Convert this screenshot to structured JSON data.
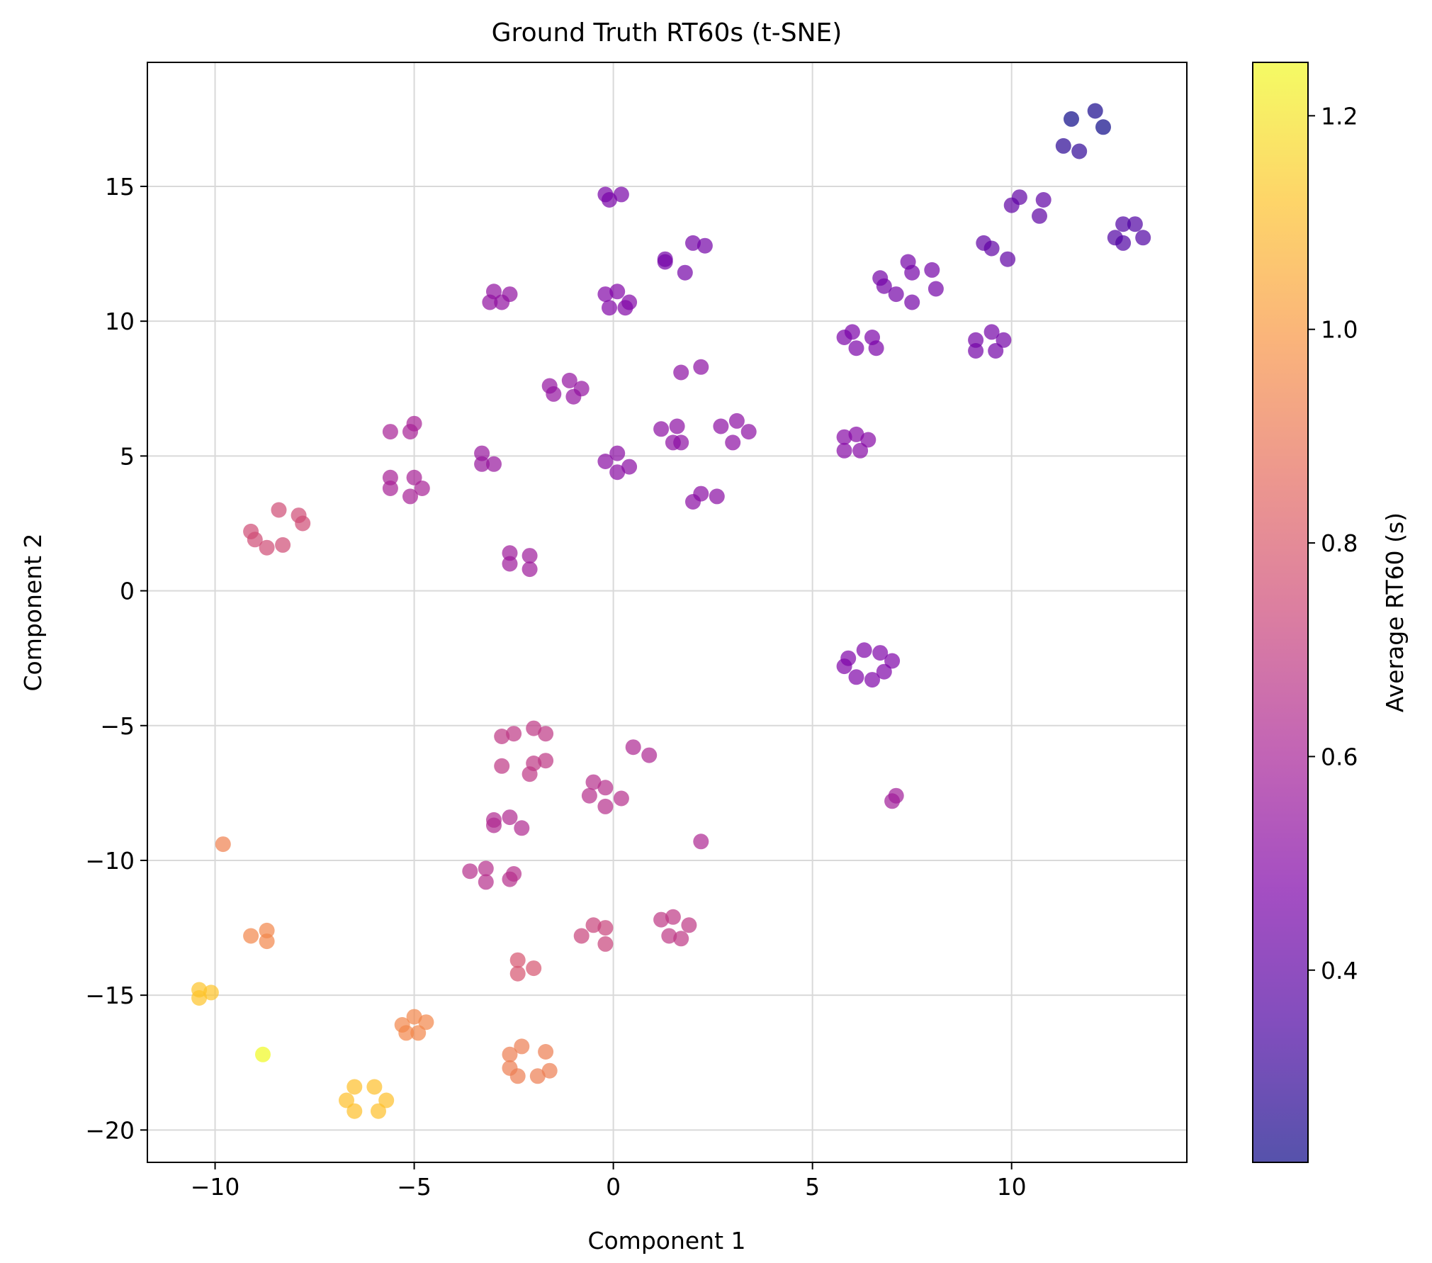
{
  "chart_data": {
    "type": "scatter",
    "title": "Ground Truth RT60s (t-SNE)",
    "xlabel": "Component 1",
    "ylabel": "Component 2",
    "xlim": [
      -11.7,
      14.4
    ],
    "ylim": [
      -21.2,
      19.6
    ],
    "xticks": [
      -10,
      -5,
      0,
      5,
      10
    ],
    "yticks": [
      -20,
      -15,
      -10,
      -5,
      0,
      5,
      10,
      15
    ],
    "grid": true,
    "colormap": "plasma",
    "colorbar": {
      "label": "Average RT60 (s)",
      "range": [
        0.22,
        1.25
      ],
      "ticks": [
        0.4,
        0.6,
        0.8,
        1.0,
        1.2
      ]
    },
    "points": [
      {
        "x": 11.5,
        "y": 17.5,
        "c": 0.22
      },
      {
        "x": 12.1,
        "y": 17.8,
        "c": 0.24
      },
      {
        "x": 12.3,
        "y": 17.2,
        "c": 0.22
      },
      {
        "x": 11.3,
        "y": 16.5,
        "c": 0.28
      },
      {
        "x": 11.7,
        "y": 16.3,
        "c": 0.29
      },
      {
        "x": 10.0,
        "y": 14.3,
        "c": 0.4
      },
      {
        "x": 10.2,
        "y": 14.6,
        "c": 0.4
      },
      {
        "x": 10.8,
        "y": 14.5,
        "c": 0.4
      },
      {
        "x": 10.7,
        "y": 13.9,
        "c": 0.39
      },
      {
        "x": 12.6,
        "y": 13.1,
        "c": 0.36
      },
      {
        "x": 12.8,
        "y": 13.6,
        "c": 0.36
      },
      {
        "x": 13.1,
        "y": 13.6,
        "c": 0.36
      },
      {
        "x": 13.3,
        "y": 13.1,
        "c": 0.36
      },
      {
        "x": 12.8,
        "y": 12.9,
        "c": 0.36
      },
      {
        "x": 9.3,
        "y": 12.9,
        "c": 0.4
      },
      {
        "x": 9.5,
        "y": 12.7,
        "c": 0.4
      },
      {
        "x": 9.9,
        "y": 12.3,
        "c": 0.4
      },
      {
        "x": -0.2,
        "y": 14.7,
        "c": 0.46
      },
      {
        "x": -0.1,
        "y": 14.5,
        "c": 0.46
      },
      {
        "x": 0.2,
        "y": 14.7,
        "c": 0.46
      },
      {
        "x": 2.0,
        "y": 12.9,
        "c": 0.45
      },
      {
        "x": 2.3,
        "y": 12.8,
        "c": 0.45
      },
      {
        "x": 1.3,
        "y": 12.3,
        "c": 0.45
      },
      {
        "x": 1.3,
        "y": 12.2,
        "c": 0.45
      },
      {
        "x": 1.8,
        "y": 11.8,
        "c": 0.45
      },
      {
        "x": -3.1,
        "y": 10.7,
        "c": 0.53
      },
      {
        "x": -3.0,
        "y": 11.1,
        "c": 0.53
      },
      {
        "x": -2.6,
        "y": 11.0,
        "c": 0.53
      },
      {
        "x": -2.8,
        "y": 10.7,
        "c": 0.53
      },
      {
        "x": -0.2,
        "y": 11.0,
        "c": 0.49
      },
      {
        "x": 0.1,
        "y": 11.1,
        "c": 0.49
      },
      {
        "x": -0.1,
        "y": 10.5,
        "c": 0.49
      },
      {
        "x": 0.3,
        "y": 10.5,
        "c": 0.49
      },
      {
        "x": 0.4,
        "y": 10.7,
        "c": 0.49
      },
      {
        "x": 6.7,
        "y": 11.6,
        "c": 0.45
      },
      {
        "x": 6.8,
        "y": 11.3,
        "c": 0.45
      },
      {
        "x": 7.1,
        "y": 11.0,
        "c": 0.45
      },
      {
        "x": 7.4,
        "y": 12.2,
        "c": 0.45
      },
      {
        "x": 7.5,
        "y": 11.8,
        "c": 0.45
      },
      {
        "x": 7.5,
        "y": 10.7,
        "c": 0.45
      },
      {
        "x": 8.0,
        "y": 11.9,
        "c": 0.45
      },
      {
        "x": 8.1,
        "y": 11.2,
        "c": 0.45
      },
      {
        "x": 5.8,
        "y": 9.4,
        "c": 0.47
      },
      {
        "x": 6.0,
        "y": 9.6,
        "c": 0.47
      },
      {
        "x": 6.1,
        "y": 9.0,
        "c": 0.47
      },
      {
        "x": 6.5,
        "y": 9.4,
        "c": 0.47
      },
      {
        "x": 6.6,
        "y": 9.0,
        "c": 0.47
      },
      {
        "x": 9.1,
        "y": 9.3,
        "c": 0.45
      },
      {
        "x": 9.1,
        "y": 8.9,
        "c": 0.45
      },
      {
        "x": 9.5,
        "y": 9.6,
        "c": 0.45
      },
      {
        "x": 9.6,
        "y": 8.9,
        "c": 0.45
      },
      {
        "x": 9.8,
        "y": 9.3,
        "c": 0.45
      },
      {
        "x": -1.6,
        "y": 7.6,
        "c": 0.54
      },
      {
        "x": -1.5,
        "y": 7.3,
        "c": 0.54
      },
      {
        "x": -1.1,
        "y": 7.8,
        "c": 0.54
      },
      {
        "x": -1.0,
        "y": 7.2,
        "c": 0.54
      },
      {
        "x": -0.8,
        "y": 7.5,
        "c": 0.54
      },
      {
        "x": 1.7,
        "y": 8.1,
        "c": 0.52
      },
      {
        "x": 2.2,
        "y": 8.3,
        "c": 0.52
      },
      {
        "x": -5.6,
        "y": 5.9,
        "c": 0.6
      },
      {
        "x": -5.0,
        "y": 6.2,
        "c": 0.6
      },
      {
        "x": -5.1,
        "y": 5.9,
        "c": 0.6
      },
      {
        "x": -5.6,
        "y": 4.2,
        "c": 0.6
      },
      {
        "x": -5.6,
        "y": 3.8,
        "c": 0.6
      },
      {
        "x": -5.0,
        "y": 4.2,
        "c": 0.6
      },
      {
        "x": -5.1,
        "y": 3.5,
        "c": 0.6
      },
      {
        "x": -4.8,
        "y": 3.8,
        "c": 0.6
      },
      {
        "x": -3.3,
        "y": 5.1,
        "c": 0.55
      },
      {
        "x": -3.3,
        "y": 4.7,
        "c": 0.55
      },
      {
        "x": -3.0,
        "y": 4.7,
        "c": 0.55
      },
      {
        "x": -0.2,
        "y": 4.8,
        "c": 0.51
      },
      {
        "x": 0.1,
        "y": 5.1,
        "c": 0.51
      },
      {
        "x": 0.1,
        "y": 4.4,
        "c": 0.51
      },
      {
        "x": 0.4,
        "y": 4.6,
        "c": 0.51
      },
      {
        "x": 1.2,
        "y": 6.0,
        "c": 0.52
      },
      {
        "x": 1.6,
        "y": 6.1,
        "c": 0.52
      },
      {
        "x": 1.5,
        "y": 5.5,
        "c": 0.52
      },
      {
        "x": 1.7,
        "y": 5.5,
        "c": 0.52
      },
      {
        "x": 2.7,
        "y": 6.1,
        "c": 0.52
      },
      {
        "x": 3.1,
        "y": 6.3,
        "c": 0.52
      },
      {
        "x": 3.0,
        "y": 5.5,
        "c": 0.52
      },
      {
        "x": 3.4,
        "y": 5.9,
        "c": 0.52
      },
      {
        "x": 5.8,
        "y": 5.7,
        "c": 0.5
      },
      {
        "x": 5.8,
        "y": 5.2,
        "c": 0.5
      },
      {
        "x": 6.1,
        "y": 5.8,
        "c": 0.5
      },
      {
        "x": 6.2,
        "y": 5.2,
        "c": 0.5
      },
      {
        "x": 6.4,
        "y": 5.6,
        "c": 0.5
      },
      {
        "x": 2.0,
        "y": 3.3,
        "c": 0.51
      },
      {
        "x": 2.2,
        "y": 3.6,
        "c": 0.51
      },
      {
        "x": 2.6,
        "y": 3.5,
        "c": 0.51
      },
      {
        "x": -2.6,
        "y": 1.4,
        "c": 0.57
      },
      {
        "x": -2.6,
        "y": 1.0,
        "c": 0.57
      },
      {
        "x": -2.1,
        "y": 1.3,
        "c": 0.57
      },
      {
        "x": -2.1,
        "y": 0.8,
        "c": 0.57
      },
      {
        "x": -8.4,
        "y": 3.0,
        "c": 0.75
      },
      {
        "x": -7.9,
        "y": 2.8,
        "c": 0.75
      },
      {
        "x": -7.8,
        "y": 2.5,
        "c": 0.75
      },
      {
        "x": -9.1,
        "y": 2.2,
        "c": 0.75
      },
      {
        "x": -9.0,
        "y": 1.9,
        "c": 0.75
      },
      {
        "x": -8.7,
        "y": 1.6,
        "c": 0.75
      },
      {
        "x": -8.3,
        "y": 1.7,
        "c": 0.75
      },
      {
        "x": 5.8,
        "y": -2.8,
        "c": 0.48
      },
      {
        "x": 5.9,
        "y": -2.5,
        "c": 0.48
      },
      {
        "x": 6.1,
        "y": -3.2,
        "c": 0.48
      },
      {
        "x": 6.3,
        "y": -2.2,
        "c": 0.48
      },
      {
        "x": 6.5,
        "y": -3.3,
        "c": 0.48
      },
      {
        "x": 6.7,
        "y": -2.3,
        "c": 0.48
      },
      {
        "x": 6.8,
        "y": -3.0,
        "c": 0.48
      },
      {
        "x": 7.0,
        "y": -2.6,
        "c": 0.48
      },
      {
        "x": -2.8,
        "y": -5.4,
        "c": 0.68
      },
      {
        "x": -2.5,
        "y": -5.3,
        "c": 0.68
      },
      {
        "x": -2.0,
        "y": -5.1,
        "c": 0.68
      },
      {
        "x": -1.7,
        "y": -5.3,
        "c": 0.68
      },
      {
        "x": -2.8,
        "y": -6.5,
        "c": 0.68
      },
      {
        "x": -2.0,
        "y": -6.4,
        "c": 0.68
      },
      {
        "x": -1.7,
        "y": -6.3,
        "c": 0.68
      },
      {
        "x": -2.1,
        "y": -6.8,
        "c": 0.68
      },
      {
        "x": 0.5,
        "y": -5.8,
        "c": 0.62
      },
      {
        "x": 0.9,
        "y": -6.1,
        "c": 0.62
      },
      {
        "x": -0.6,
        "y": -7.6,
        "c": 0.65
      },
      {
        "x": -0.5,
        "y": -7.1,
        "c": 0.65
      },
      {
        "x": -0.2,
        "y": -7.3,
        "c": 0.65
      },
      {
        "x": -0.2,
        "y": -8.0,
        "c": 0.65
      },
      {
        "x": 0.2,
        "y": -7.7,
        "c": 0.65
      },
      {
        "x": 7.0,
        "y": -7.8,
        "c": 0.58
      },
      {
        "x": 7.1,
        "y": -7.6,
        "c": 0.58
      },
      {
        "x": -3.0,
        "y": -8.5,
        "c": 0.63
      },
      {
        "x": -3.0,
        "y": -8.7,
        "c": 0.63
      },
      {
        "x": -2.6,
        "y": -8.4,
        "c": 0.63
      },
      {
        "x": -2.3,
        "y": -8.8,
        "c": 0.63
      },
      {
        "x": 2.2,
        "y": -9.3,
        "c": 0.62
      },
      {
        "x": -3.6,
        "y": -10.4,
        "c": 0.65
      },
      {
        "x": -3.2,
        "y": -10.3,
        "c": 0.65
      },
      {
        "x": -3.2,
        "y": -10.8,
        "c": 0.65
      },
      {
        "x": -2.6,
        "y": -10.7,
        "c": 0.65
      },
      {
        "x": -2.5,
        "y": -10.5,
        "c": 0.65
      },
      {
        "x": -9.8,
        "y": -9.4,
        "c": 0.93
      },
      {
        "x": -9.1,
        "y": -12.8,
        "c": 0.95
      },
      {
        "x": -8.7,
        "y": -12.6,
        "c": 0.95
      },
      {
        "x": -8.7,
        "y": -13.0,
        "c": 0.95
      },
      {
        "x": -0.8,
        "y": -12.8,
        "c": 0.72
      },
      {
        "x": -0.5,
        "y": -12.4,
        "c": 0.72
      },
      {
        "x": -0.2,
        "y": -12.5,
        "c": 0.72
      },
      {
        "x": -0.2,
        "y": -13.1,
        "c": 0.72
      },
      {
        "x": 1.2,
        "y": -12.2,
        "c": 0.68
      },
      {
        "x": 1.5,
        "y": -12.1,
        "c": 0.68
      },
      {
        "x": 1.4,
        "y": -12.8,
        "c": 0.68
      },
      {
        "x": 1.7,
        "y": -12.9,
        "c": 0.68
      },
      {
        "x": 1.9,
        "y": -12.4,
        "c": 0.68
      },
      {
        "x": -2.4,
        "y": -13.7,
        "c": 0.78
      },
      {
        "x": -2.4,
        "y": -14.2,
        "c": 0.78
      },
      {
        "x": -2.0,
        "y": -14.0,
        "c": 0.78
      },
      {
        "x": -10.4,
        "y": -14.8,
        "c": 1.12
      },
      {
        "x": -10.4,
        "y": -15.1,
        "c": 1.12
      },
      {
        "x": -10.1,
        "y": -14.9,
        "c": 1.12
      },
      {
        "x": -8.8,
        "y": -17.2,
        "c": 1.25
      },
      {
        "x": -5.3,
        "y": -16.1,
        "c": 0.95
      },
      {
        "x": -5.2,
        "y": -16.4,
        "c": 0.95
      },
      {
        "x": -5.0,
        "y": -15.8,
        "c": 0.95
      },
      {
        "x": -4.9,
        "y": -16.4,
        "c": 0.95
      },
      {
        "x": -4.7,
        "y": -16.0,
        "c": 0.95
      },
      {
        "x": -2.6,
        "y": -17.2,
        "c": 0.92
      },
      {
        "x": -2.3,
        "y": -16.9,
        "c": 0.92
      },
      {
        "x": -2.6,
        "y": -17.7,
        "c": 0.92
      },
      {
        "x": -2.4,
        "y": -18.0,
        "c": 0.92
      },
      {
        "x": -1.9,
        "y": -18.0,
        "c": 0.92
      },
      {
        "x": -1.6,
        "y": -17.8,
        "c": 0.92
      },
      {
        "x": -1.7,
        "y": -17.1,
        "c": 0.92
      },
      {
        "x": -6.7,
        "y": -18.9,
        "c": 1.11
      },
      {
        "x": -6.5,
        "y": -18.4,
        "c": 1.11
      },
      {
        "x": -6.5,
        "y": -19.3,
        "c": 1.11
      },
      {
        "x": -6.0,
        "y": -18.4,
        "c": 1.11
      },
      {
        "x": -5.9,
        "y": -19.3,
        "c": 1.11
      },
      {
        "x": -5.7,
        "y": -18.9,
        "c": 1.11
      }
    ]
  }
}
